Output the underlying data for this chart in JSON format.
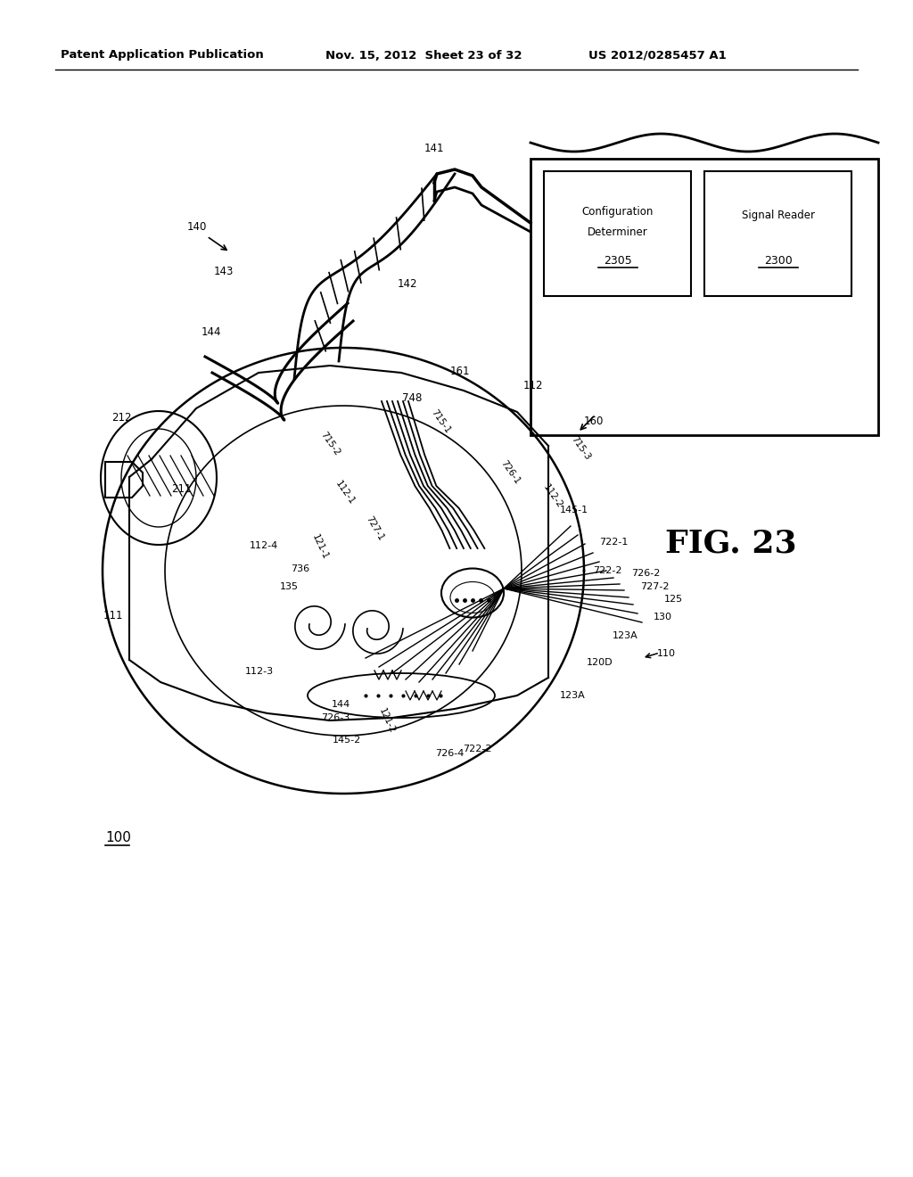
{
  "bg_color": "#ffffff",
  "header_left": "Patent Application Publication",
  "header_mid": "Nov. 15, 2012  Sheet 23 of 32",
  "header_right": "US 2012/0285457 A1",
  "fig_num": "FIG. 23",
  "ref_100": "100",
  "box1_line1": "Configuration",
  "box1_line2": "Determiner",
  "box1_num": "2305",
  "box2_line1": "Signal Reader",
  "box2_num": "2300"
}
